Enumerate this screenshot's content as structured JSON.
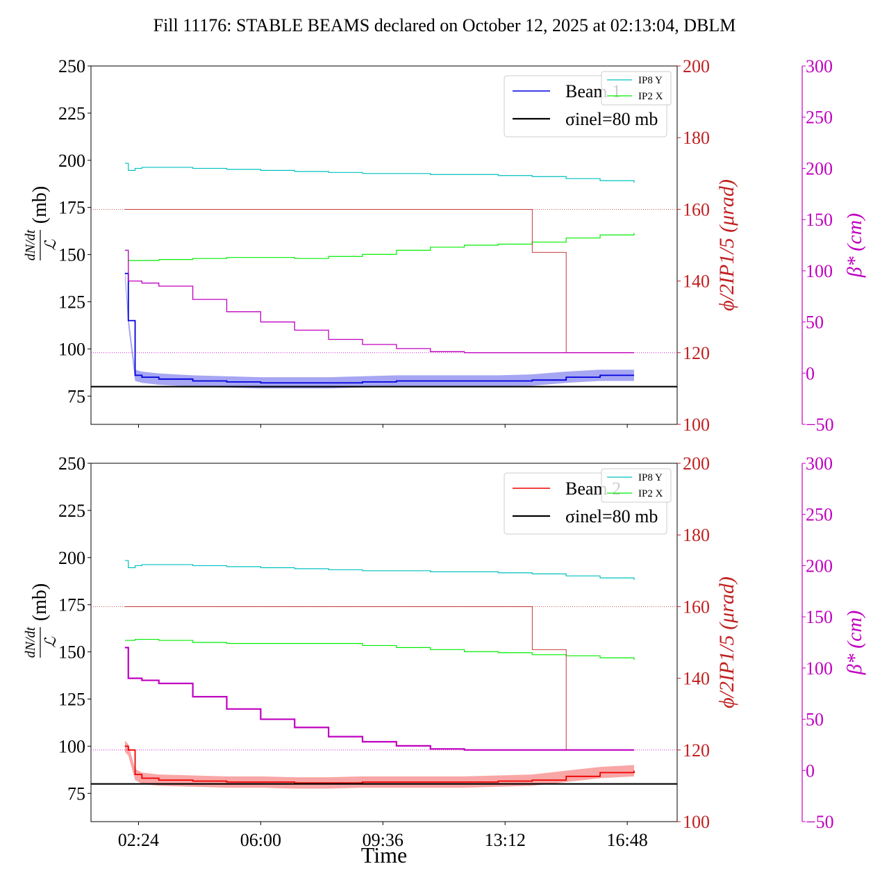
{
  "figure": {
    "title": "Fill 11176: STABLE BEAMS declared on October 12, 2025 at 02:13:04, DBLM",
    "xlabel": "Time",
    "x_ticks": [
      "02:24",
      "06:00",
      "09:36",
      "13:12",
      "16:48"
    ]
  },
  "colors": {
    "ratio_b1": "#0000dd",
    "ratio_b2": "#ee0000",
    "ip8y": "#00c0c0",
    "ip2x": "#00ee00",
    "xing": "#c02020",
    "beta": "#c000c0",
    "sigma": "#000000"
  },
  "chart_data": [
    {
      "type": "line",
      "panel": "top",
      "left_axis": {
        "label_num": "dN/dt",
        "label_den": "ℒ",
        "label_unit": "(mb)",
        "range": [
          60,
          250
        ],
        "ticks": [
          "75",
          "100",
          "125",
          "150",
          "175",
          "200",
          "225",
          "250"
        ]
      },
      "right_axis_1": {
        "label": "ϕ/2IP1/5 (μrad)",
        "range": [
          100,
          200
        ],
        "ticks": [
          "100",
          "120",
          "140",
          "160",
          "180",
          "200"
        ]
      },
      "right_axis_2": {
        "label": "β* (cm)",
        "range": [
          -50,
          300
        ],
        "ticks": [
          "−50",
          "0",
          "50",
          "100",
          "150",
          "200",
          "250",
          "300"
        ]
      },
      "legend_main": [
        "Beam 1",
        "σinel=80 mb"
      ],
      "legend_small": [
        "IP8 Y",
        "IP2 X"
      ],
      "sigma_inel_mb": 80,
      "x_hours": [
        2.0,
        2.1,
        2.3,
        2.5,
        3.0,
        4.0,
        5.0,
        6.0,
        7.0,
        8.0,
        9.0,
        10.0,
        11.0,
        12.0,
        13.0,
        14.0,
        15.0,
        16.0,
        17.0
      ],
      "series": [
        {
          "name": "Beam 1",
          "axis": "left",
          "values": [
            140,
            115,
            86,
            85,
            84,
            83,
            82.5,
            82,
            82,
            82,
            82.5,
            83,
            83,
            83,
            83,
            83.5,
            85,
            86,
            86
          ]
        },
        {
          "name": "IP8 Y",
          "axis": "beta",
          "values": [
            205,
            198,
            200,
            201,
            201,
            200,
            199,
            198,
            197,
            196,
            195,
            195,
            194,
            194,
            193,
            192,
            190,
            188,
            186
          ]
        },
        {
          "name": "IP2 X",
          "axis": "beta",
          "values": [
            120,
            110,
            110,
            110,
            111,
            112,
            113,
            113,
            112,
            114,
            116,
            120,
            123,
            125,
            126,
            128,
            132,
            135,
            137
          ]
        },
        {
          "name": "crossing",
          "axis": "xing",
          "values": [
            160,
            160,
            160,
            160,
            160,
            160,
            160,
            160,
            160,
            160,
            160,
            160,
            160,
            160,
            160,
            148,
            120,
            120,
            120
          ]
        },
        {
          "name": "beta",
          "axis": "beta",
          "values": [
            120,
            90,
            90,
            88,
            85,
            72,
            60,
            50,
            42,
            33,
            28,
            24,
            21,
            20,
            20,
            20,
            20,
            20,
            20
          ]
        }
      ]
    },
    {
      "type": "line",
      "panel": "bottom",
      "left_axis": {
        "label_num": "dN/dt",
        "label_den": "ℒ",
        "label_unit": "(mb)",
        "range": [
          60,
          250
        ],
        "ticks": [
          "75",
          "100",
          "125",
          "150",
          "175",
          "200",
          "225",
          "250"
        ]
      },
      "right_axis_1": {
        "label": "ϕ/2IP1/5 (μrad)",
        "range": [
          100,
          200
        ],
        "ticks": [
          "100",
          "120",
          "140",
          "160",
          "180",
          "200"
        ]
      },
      "right_axis_2": {
        "label": "β* (cm)",
        "range": [
          -50,
          300
        ],
        "ticks": [
          "−50",
          "0",
          "50",
          "100",
          "150",
          "200",
          "250",
          "300"
        ]
      },
      "legend_main": [
        "Beam 2",
        "σinel=80 mb"
      ],
      "legend_small": [
        "IP8 Y",
        "IP2 X"
      ],
      "sigma_inel_mb": 80,
      "x_hours": [
        2.0,
        2.1,
        2.3,
        2.5,
        3.0,
        4.0,
        5.0,
        6.0,
        7.0,
        8.0,
        9.0,
        10.0,
        11.0,
        12.0,
        13.0,
        14.0,
        15.0,
        16.0,
        17.0
      ],
      "series": [
        {
          "name": "Beam 2",
          "axis": "left",
          "values": [
            100,
            98,
            85,
            83,
            82,
            81.5,
            81,
            81,
            80.5,
            80.5,
            81,
            81,
            81,
            81,
            81.5,
            82,
            84,
            86,
            87
          ]
        },
        {
          "name": "IP8 Y",
          "axis": "beta",
          "values": [
            205,
            198,
            200,
            201,
            201,
            200,
            199,
            198,
            197,
            196,
            195,
            195,
            194,
            194,
            193,
            192,
            190,
            188,
            186
          ]
        },
        {
          "name": "IP2 X",
          "axis": "beta",
          "values": [
            127,
            127,
            128,
            128,
            127,
            125,
            124,
            124,
            124,
            124,
            122,
            120,
            118,
            116,
            115,
            113,
            112,
            110,
            108
          ]
        },
        {
          "name": "crossing",
          "axis": "xing",
          "values": [
            160,
            160,
            160,
            160,
            160,
            160,
            160,
            160,
            160,
            160,
            160,
            160,
            160,
            160,
            160,
            148,
            120,
            120,
            120
          ]
        },
        {
          "name": "beta",
          "axis": "beta",
          "values": [
            120,
            90,
            90,
            88,
            85,
            72,
            60,
            50,
            42,
            33,
            28,
            24,
            21,
            20,
            20,
            20,
            20,
            20,
            20
          ]
        }
      ]
    }
  ]
}
